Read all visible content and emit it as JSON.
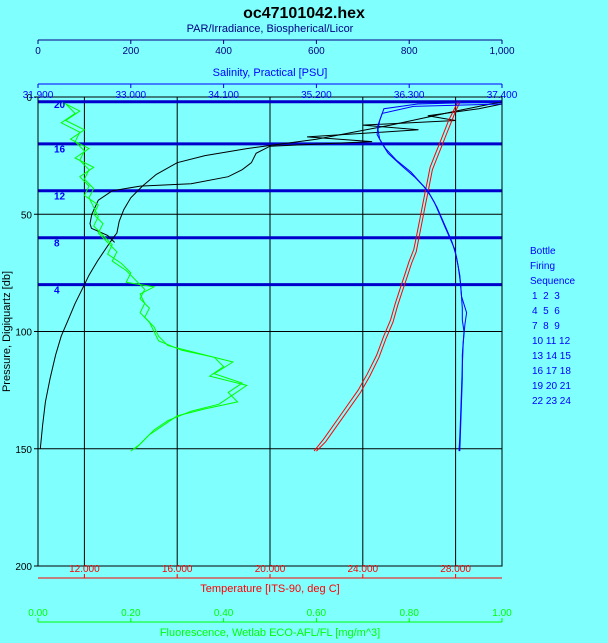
{
  "chart_data": {
    "type": "line",
    "title": "oc47101042.hex",
    "y_axis": {
      "label": "Pressure, Digiquartz [db]",
      "range": [
        0,
        200
      ],
      "ticks": [
        "0",
        "50",
        "100",
        "150",
        "200"
      ],
      "tick_values": [
        0,
        50,
        100,
        150,
        200
      ],
      "reversed": true
    },
    "axes_top": [
      {
        "label": "PAR/Irradiance, Biospherical/Licor",
        "color": "#000080",
        "range": [
          0,
          1000
        ],
        "ticks": [
          "0",
          "200",
          "400",
          "600",
          "800",
          "1,000"
        ],
        "tick_values": [
          0,
          200,
          400,
          600,
          800,
          1000
        ]
      },
      {
        "label": "Salinity, Practical [PSU]",
        "color": "#0000ff",
        "range": [
          31.9,
          37.4
        ],
        "ticks": [
          "31.900",
          "33.000",
          "34.100",
          "35.200",
          "36.300",
          "37.400"
        ],
        "tick_values": [
          31.9,
          33.0,
          34.1,
          35.2,
          36.3,
          37.4
        ]
      }
    ],
    "axes_bottom": [
      {
        "label": "Temperature [ITS-90, deg C]",
        "color": "#ff0000",
        "range": [
          10,
          30
        ],
        "ticks": [
          "12.000",
          "16.000",
          "20.000",
          "24.000",
          "28.000"
        ],
        "tick_values": [
          12,
          16,
          20,
          24,
          28
        ]
      },
      {
        "label": "Fluorescence, Wetlab ECO-AFL/FL [mg/m^3]",
        "color": "#00ff00",
        "range": [
          0,
          1
        ],
        "ticks": [
          "0.00",
          "0.20",
          "0.40",
          "0.60",
          "0.80",
          "1.00"
        ],
        "tick_values": [
          0,
          0.2,
          0.4,
          0.6,
          0.8,
          1.0
        ]
      }
    ],
    "grid": true,
    "gridlines_x_axis": "Temperature [ITS-90, deg C]",
    "bottle_firing_pressures": [
      2,
      20,
      40,
      60,
      80
    ],
    "bottle_labels": [
      {
        "text": "20",
        "pressure": 3
      },
      {
        "text": "16",
        "pressure": 22
      },
      {
        "text": "12",
        "pressure": 42
      },
      {
        "text": "8",
        "pressure": 62
      },
      {
        "text": "4",
        "pressure": 82
      }
    ],
    "legend": {
      "placement": "right",
      "title": [
        "Bottle",
        "Firing",
        "Sequence"
      ],
      "rows": [
        "1  2  3",
        "4  5  6",
        "7  8  9",
        "10 11 12",
        "13 14 15",
        "16 17 18",
        "19 20 21",
        "22 23 24"
      ]
    },
    "series": [
      {
        "name": "PAR/Irradiance, Biospherical/Licor",
        "axis": "PAR/Irradiance, Biospherical/Licor",
        "color": "#000000",
        "points": [
          [
            1000,
            2
          ],
          [
            900,
            6
          ],
          [
            760,
            12
          ],
          [
            600,
            18
          ],
          [
            450,
            22
          ],
          [
            360,
            25
          ],
          [
            300,
            28
          ],
          [
            255,
            33
          ],
          [
            225,
            38
          ],
          [
            200,
            43
          ],
          [
            185,
            48
          ],
          [
            175,
            53
          ],
          [
            170,
            58
          ],
          [
            162,
            60
          ],
          [
            145,
            65
          ],
          [
            128,
            70
          ],
          [
            110,
            76
          ],
          [
            95,
            82
          ],
          [
            80,
            88
          ],
          [
            65,
            95
          ],
          [
            50,
            102
          ],
          [
            38,
            110
          ],
          [
            26,
            120
          ],
          [
            16,
            130
          ],
          [
            10,
            140
          ],
          [
            5,
            150
          ]
        ]
      },
      {
        "name": "PAR/Irradiance, Biospherical/Licor (upcast)",
        "axis": "PAR/Irradiance, Biospherical/Licor",
        "color": "#000000",
        "points": [
          [
            1000,
            3
          ],
          [
            950,
            5
          ],
          [
            840,
            8
          ],
          [
            900,
            10
          ],
          [
            700,
            12
          ],
          [
            820,
            14
          ],
          [
            580,
            17
          ],
          [
            720,
            19
          ],
          [
            500,
            21
          ],
          [
            470,
            24
          ],
          [
            460,
            28
          ],
          [
            440,
            31
          ],
          [
            410,
            34
          ],
          [
            330,
            37
          ],
          [
            220,
            38
          ],
          [
            160,
            40
          ],
          [
            130,
            44
          ],
          [
            116,
            50
          ],
          [
            112,
            54
          ],
          [
            115,
            56
          ],
          [
            150,
            59
          ],
          [
            165,
            62
          ]
        ]
      },
      {
        "name": "Temperature [ITS-90, deg C]",
        "axis": "Temperature [ITS-90, deg C]",
        "color": "#ff0000",
        "points": [
          [
            28.1,
            2
          ],
          [
            27.9,
            6
          ],
          [
            27.7,
            10
          ],
          [
            27.5,
            15
          ],
          [
            27.3,
            20
          ],
          [
            27.1,
            25
          ],
          [
            26.9,
            30
          ],
          [
            26.8,
            35
          ],
          [
            26.7,
            40
          ],
          [
            26.6,
            45
          ],
          [
            26.5,
            50
          ],
          [
            26.4,
            55
          ],
          [
            26.3,
            60
          ],
          [
            26.2,
            65
          ],
          [
            26.0,
            70
          ],
          [
            25.8,
            76
          ],
          [
            25.6,
            82
          ],
          [
            25.4,
            88
          ],
          [
            25.2,
            95
          ],
          [
            24.9,
            102
          ],
          [
            24.6,
            110
          ],
          [
            24.2,
            118
          ],
          [
            23.8,
            125
          ],
          [
            23.3,
            132
          ],
          [
            22.8,
            139
          ],
          [
            22.3,
            146
          ],
          [
            21.9,
            151
          ]
        ]
      },
      {
        "name": "Temperature [ITS-90, deg C] (upcast)",
        "axis": "Temperature [ITS-90, deg C]",
        "color": "#ff0000",
        "points": [
          [
            28.2,
            2
          ],
          [
            28.0,
            6
          ],
          [
            27.8,
            11
          ],
          [
            27.6,
            16
          ],
          [
            27.4,
            21
          ],
          [
            27.2,
            26
          ],
          [
            27.0,
            31
          ],
          [
            26.9,
            36
          ],
          [
            26.8,
            41
          ],
          [
            26.7,
            46
          ],
          [
            26.6,
            51
          ],
          [
            26.5,
            56
          ],
          [
            26.4,
            61
          ],
          [
            26.3,
            66
          ],
          [
            26.1,
            71
          ],
          [
            25.9,
            77
          ],
          [
            25.7,
            83
          ],
          [
            25.5,
            89
          ],
          [
            25.3,
            96
          ],
          [
            25.0,
            103
          ],
          [
            24.7,
            111
          ],
          [
            24.3,
            119
          ],
          [
            23.9,
            126
          ],
          [
            23.4,
            133
          ],
          [
            22.9,
            140
          ],
          [
            22.4,
            147
          ],
          [
            22.0,
            151
          ]
        ]
      },
      {
        "name": "Salinity, Practical [PSU]",
        "axis": "Salinity, Practical [PSU]",
        "color": "#0000ff",
        "points": [
          [
            37.4,
            2
          ],
          [
            36.4,
            3
          ],
          [
            36.0,
            5
          ],
          [
            35.95,
            10
          ],
          [
            35.93,
            14
          ],
          [
            35.95,
            18
          ],
          [
            36.02,
            22
          ],
          [
            36.15,
            27
          ],
          [
            36.32,
            32
          ],
          [
            36.42,
            36
          ],
          [
            36.52,
            40
          ],
          [
            36.6,
            45
          ],
          [
            36.66,
            50
          ],
          [
            36.72,
            55
          ],
          [
            36.78,
            60
          ],
          [
            36.84,
            65
          ],
          [
            36.88,
            72
          ],
          [
            36.91,
            80
          ],
          [
            36.93,
            90
          ],
          [
            36.93,
            95
          ],
          [
            36.95,
            100
          ],
          [
            36.93,
            110
          ],
          [
            36.93,
            120
          ],
          [
            36.92,
            130
          ],
          [
            36.91,
            140
          ],
          [
            36.9,
            151
          ]
        ]
      },
      {
        "name": "Salinity, Practical [PSU] (upcast)",
        "axis": "Salinity, Practical [PSU]",
        "color": "#0000ff",
        "points": [
          [
            37.4,
            3
          ],
          [
            36.35,
            4
          ],
          [
            35.98,
            7
          ],
          [
            35.93,
            12
          ],
          [
            35.92,
            16
          ],
          [
            35.98,
            20
          ],
          [
            36.05,
            24
          ],
          [
            36.2,
            29
          ],
          [
            36.36,
            34
          ],
          [
            36.47,
            38
          ],
          [
            36.55,
            42
          ],
          [
            36.63,
            47
          ],
          [
            36.69,
            52
          ],
          [
            36.75,
            57
          ],
          [
            36.81,
            62
          ],
          [
            36.86,
            68
          ],
          [
            36.9,
            76
          ],
          [
            36.92,
            85
          ],
          [
            36.98,
            92
          ],
          [
            36.96,
            97
          ],
          [
            36.94,
            105
          ],
          [
            36.93,
            115
          ],
          [
            36.92,
            125
          ],
          [
            36.91,
            135
          ],
          [
            36.9,
            145
          ],
          [
            36.89,
            151
          ]
        ]
      },
      {
        "name": "Fluorescence, Wetlab ECO-AFL/FL [mg/m^3]",
        "axis": "Fluorescence, Wetlab ECO-AFL/FL [mg/m^3]",
        "color": "#00ff00",
        "points": [
          [
            0.05,
            2
          ],
          [
            0.09,
            6
          ],
          [
            0.06,
            10
          ],
          [
            0.1,
            14
          ],
          [
            0.07,
            18
          ],
          [
            0.11,
            22
          ],
          [
            0.08,
            26
          ],
          [
            0.12,
            30
          ],
          [
            0.09,
            34
          ],
          [
            0.11,
            38
          ],
          [
            0.1,
            42
          ],
          [
            0.13,
            46
          ],
          [
            0.12,
            50
          ],
          [
            0.14,
            54
          ],
          [
            0.13,
            58
          ],
          [
            0.15,
            62
          ],
          [
            0.17,
            66
          ],
          [
            0.16,
            70
          ],
          [
            0.19,
            74
          ],
          [
            0.21,
            78
          ],
          [
            0.23,
            82
          ],
          [
            0.22,
            86
          ],
          [
            0.24,
            90
          ],
          [
            0.23,
            94
          ],
          [
            0.25,
            98
          ],
          [
            0.26,
            102
          ],
          [
            0.28,
            106
          ],
          [
            0.36,
            110
          ],
          [
            0.42,
            113
          ],
          [
            0.38,
            118
          ],
          [
            0.44,
            122
          ],
          [
            0.41,
            126
          ],
          [
            0.43,
            130
          ],
          [
            0.36,
            133
          ],
          [
            0.3,
            136
          ],
          [
            0.27,
            140
          ],
          [
            0.24,
            144
          ],
          [
            0.22,
            148
          ],
          [
            0.2,
            151
          ]
        ]
      },
      {
        "name": "Fluorescence, Wetlab ECO-AFL/FL [mg/m^3] (upcast)",
        "axis": "Fluorescence, Wetlab ECO-AFL/FL [mg/m^3]",
        "color": "#00ff00",
        "points": [
          [
            0.06,
            3
          ],
          [
            0.08,
            7
          ],
          [
            0.05,
            11
          ],
          [
            0.09,
            15
          ],
          [
            0.08,
            19
          ],
          [
            0.1,
            23
          ],
          [
            0.09,
            27
          ],
          [
            0.11,
            31
          ],
          [
            0.1,
            35
          ],
          [
            0.12,
            39
          ],
          [
            0.11,
            43
          ],
          [
            0.12,
            47
          ],
          [
            0.13,
            51
          ],
          [
            0.12,
            55
          ],
          [
            0.14,
            59
          ],
          [
            0.16,
            63
          ],
          [
            0.15,
            67
          ],
          [
            0.18,
            71
          ],
          [
            0.2,
            75
          ],
          [
            0.19,
            79
          ],
          [
            0.25,
            81
          ],
          [
            0.22,
            84
          ],
          [
            0.23,
            88
          ],
          [
            0.22,
            92
          ],
          [
            0.24,
            96
          ],
          [
            0.25,
            100
          ],
          [
            0.26,
            104
          ],
          [
            0.31,
            108
          ],
          [
            0.38,
            111
          ],
          [
            0.4,
            115
          ],
          [
            0.37,
            119
          ],
          [
            0.45,
            123
          ],
          [
            0.42,
            127
          ],
          [
            0.39,
            131
          ],
          [
            0.33,
            134
          ],
          [
            0.28,
            138
          ],
          [
            0.25,
            142
          ],
          [
            0.23,
            146
          ],
          [
            0.21,
            150
          ]
        ]
      }
    ]
  }
}
